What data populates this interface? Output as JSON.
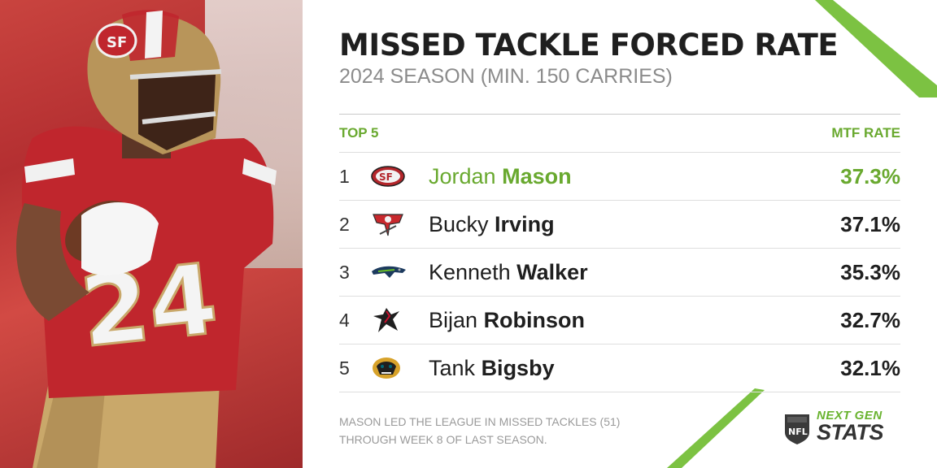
{
  "title": "MISSED TACKLE FORCED RATE",
  "subtitle": "2024 SEASON (MIN. 150 CARRIES)",
  "table": {
    "left_header": "TOP 5",
    "right_header": "MTF RATE",
    "rows": [
      {
        "rank": "1",
        "first": "Jordan",
        "last": "Mason",
        "rate": "37.3%",
        "team_logo": "49ers-logo"
      },
      {
        "rank": "2",
        "first": "Bucky",
        "last": "Irving",
        "rate": "37.1%",
        "team_logo": "buccaneers-logo"
      },
      {
        "rank": "3",
        "first": "Kenneth",
        "last": "Walker",
        "rate": "35.3%",
        "team_logo": "seahawks-logo"
      },
      {
        "rank": "4",
        "first": "Bijan",
        "last": "Robinson",
        "rate": "32.7%",
        "team_logo": "falcons-logo"
      },
      {
        "rank": "5",
        "first": "Tank",
        "last": "Bigsby",
        "rate": "32.1%",
        "team_logo": "jaguars-logo"
      }
    ]
  },
  "footnote": {
    "line1": "MASON LED THE LEAGUE IN MISSED TACKLES (51)",
    "line2": "THROUGH WEEK 8 OF LAST SEASON."
  },
  "brand": {
    "league": "NFL",
    "line1": "NEXT GEN",
    "line2": "STATS"
  },
  "photo": {
    "jersey_number": "24",
    "helmet_logo": "SF"
  },
  "colors": {
    "accent": "#69a92f",
    "text": "#1f1f1f",
    "muted": "#8b8b8b"
  },
  "chart_data": {
    "type": "table",
    "title": "MISSED TACKLE FORCED RATE",
    "subtitle": "2024 SEASON (MIN. 150 CARRIES)",
    "columns": [
      "TOP 5",
      "MTF RATE"
    ],
    "categories": [
      "Jordan Mason",
      "Bucky Irving",
      "Kenneth Walker",
      "Bijan Robinson",
      "Tank Bigsby"
    ],
    "values": [
      37.3,
      37.1,
      35.3,
      32.7,
      32.1
    ],
    "unit": "%"
  }
}
